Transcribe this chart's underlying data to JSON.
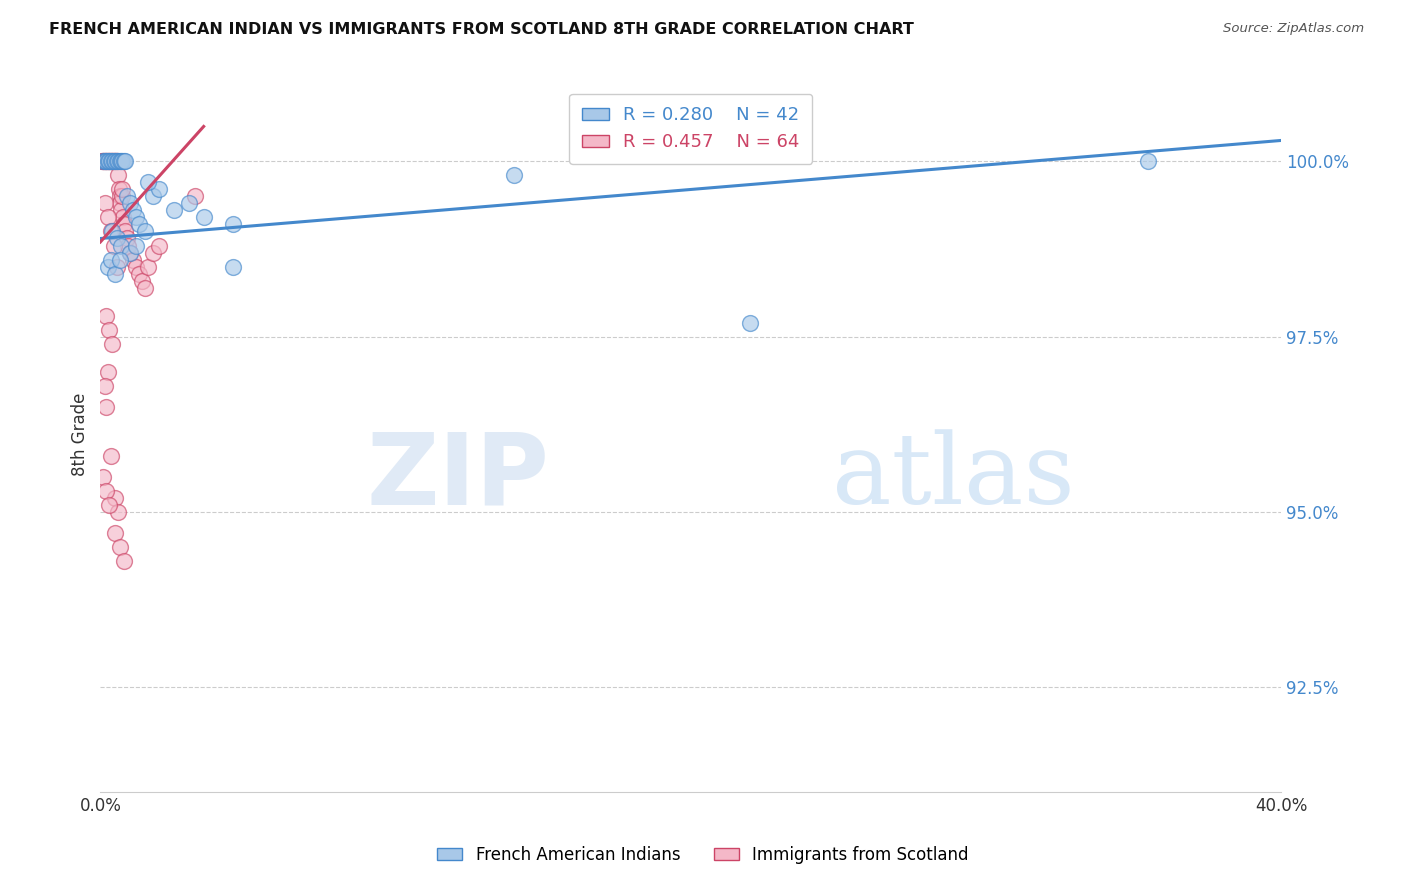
{
  "title": "FRENCH AMERICAN INDIAN VS IMMIGRANTS FROM SCOTLAND 8TH GRADE CORRELATION CHART",
  "source": "Source: ZipAtlas.com",
  "ylabel": "8th Grade",
  "yticks": [
    92.5,
    95.0,
    97.5,
    100.0
  ],
  "ytick_labels": [
    "92.5%",
    "95.0%",
    "97.5%",
    "100.0%"
  ],
  "xlim": [
    0.0,
    40.0
  ],
  "ylim": [
    91.0,
    101.2
  ],
  "legend_r1": "R = 0.280",
  "legend_n1": "N = 42",
  "legend_r2": "R = 0.457",
  "legend_n2": "N = 64",
  "color_blue": "#a8c8e8",
  "color_pink": "#f4b8c8",
  "color_blue_line": "#4488cc",
  "color_pink_line": "#cc4466",
  "watermark_zip": "ZIP",
  "watermark_atlas": "atlas",
  "blue_scatter_x": [
    0.1,
    0.15,
    0.2,
    0.25,
    0.3,
    0.35,
    0.4,
    0.45,
    0.5,
    0.55,
    0.6,
    0.65,
    0.7,
    0.75,
    0.8,
    0.85,
    0.9,
    1.0,
    1.1,
    1.2,
    1.3,
    1.5,
    1.8,
    2.0,
    2.5,
    3.0,
    3.5,
    4.5,
    0.4,
    0.55,
    0.7,
    1.0,
    1.2,
    1.6,
    0.25,
    0.35,
    0.5,
    0.65,
    14.0,
    22.0,
    35.5,
    4.5
  ],
  "blue_scatter_y": [
    100.0,
    100.0,
    100.0,
    100.0,
    100.0,
    100.0,
    100.0,
    100.0,
    100.0,
    100.0,
    100.0,
    100.0,
    100.0,
    100.0,
    100.0,
    100.0,
    99.5,
    99.4,
    99.3,
    99.2,
    99.1,
    99.0,
    99.5,
    99.6,
    99.3,
    99.4,
    99.2,
    99.1,
    99.0,
    98.9,
    98.8,
    98.7,
    98.8,
    99.7,
    98.5,
    98.6,
    98.4,
    98.6,
    99.8,
    97.7,
    100.0,
    98.5
  ],
  "pink_scatter_x": [
    0.05,
    0.08,
    0.1,
    0.12,
    0.15,
    0.18,
    0.2,
    0.22,
    0.25,
    0.28,
    0.3,
    0.32,
    0.35,
    0.38,
    0.4,
    0.42,
    0.45,
    0.48,
    0.5,
    0.52,
    0.55,
    0.58,
    0.6,
    0.62,
    0.65,
    0.68,
    0.7,
    0.72,
    0.75,
    0.78,
    0.8,
    0.85,
    0.9,
    0.95,
    1.0,
    1.1,
    1.2,
    1.3,
    1.4,
    1.5,
    1.6,
    1.8,
    2.0,
    0.15,
    0.25,
    0.35,
    0.45,
    0.55,
    3.2,
    0.2,
    0.3,
    0.4,
    0.25,
    0.15,
    0.2,
    0.35,
    0.1,
    0.5,
    0.6,
    0.2,
    0.3,
    0.5,
    0.65,
    0.8
  ],
  "pink_scatter_y": [
    100.0,
    100.0,
    100.0,
    100.0,
    100.0,
    100.0,
    100.0,
    100.0,
    100.0,
    100.0,
    100.0,
    100.0,
    100.0,
    100.0,
    100.0,
    100.0,
    100.0,
    100.0,
    100.0,
    100.0,
    100.0,
    100.0,
    99.8,
    99.6,
    99.5,
    99.4,
    99.3,
    99.5,
    99.6,
    99.2,
    99.1,
    99.0,
    98.9,
    98.8,
    98.7,
    98.6,
    98.5,
    98.4,
    98.3,
    98.2,
    98.5,
    98.7,
    98.8,
    99.4,
    99.2,
    99.0,
    98.8,
    98.5,
    99.5,
    97.8,
    97.6,
    97.4,
    97.0,
    96.8,
    96.5,
    95.8,
    95.5,
    95.2,
    95.0,
    95.3,
    95.1,
    94.7,
    94.5,
    94.3
  ],
  "blue_line_x": [
    0.0,
    40.0
  ],
  "blue_line_y": [
    98.9,
    100.3
  ],
  "pink_line_x": [
    0.0,
    3.5
  ],
  "pink_line_y": [
    98.85,
    100.5
  ]
}
